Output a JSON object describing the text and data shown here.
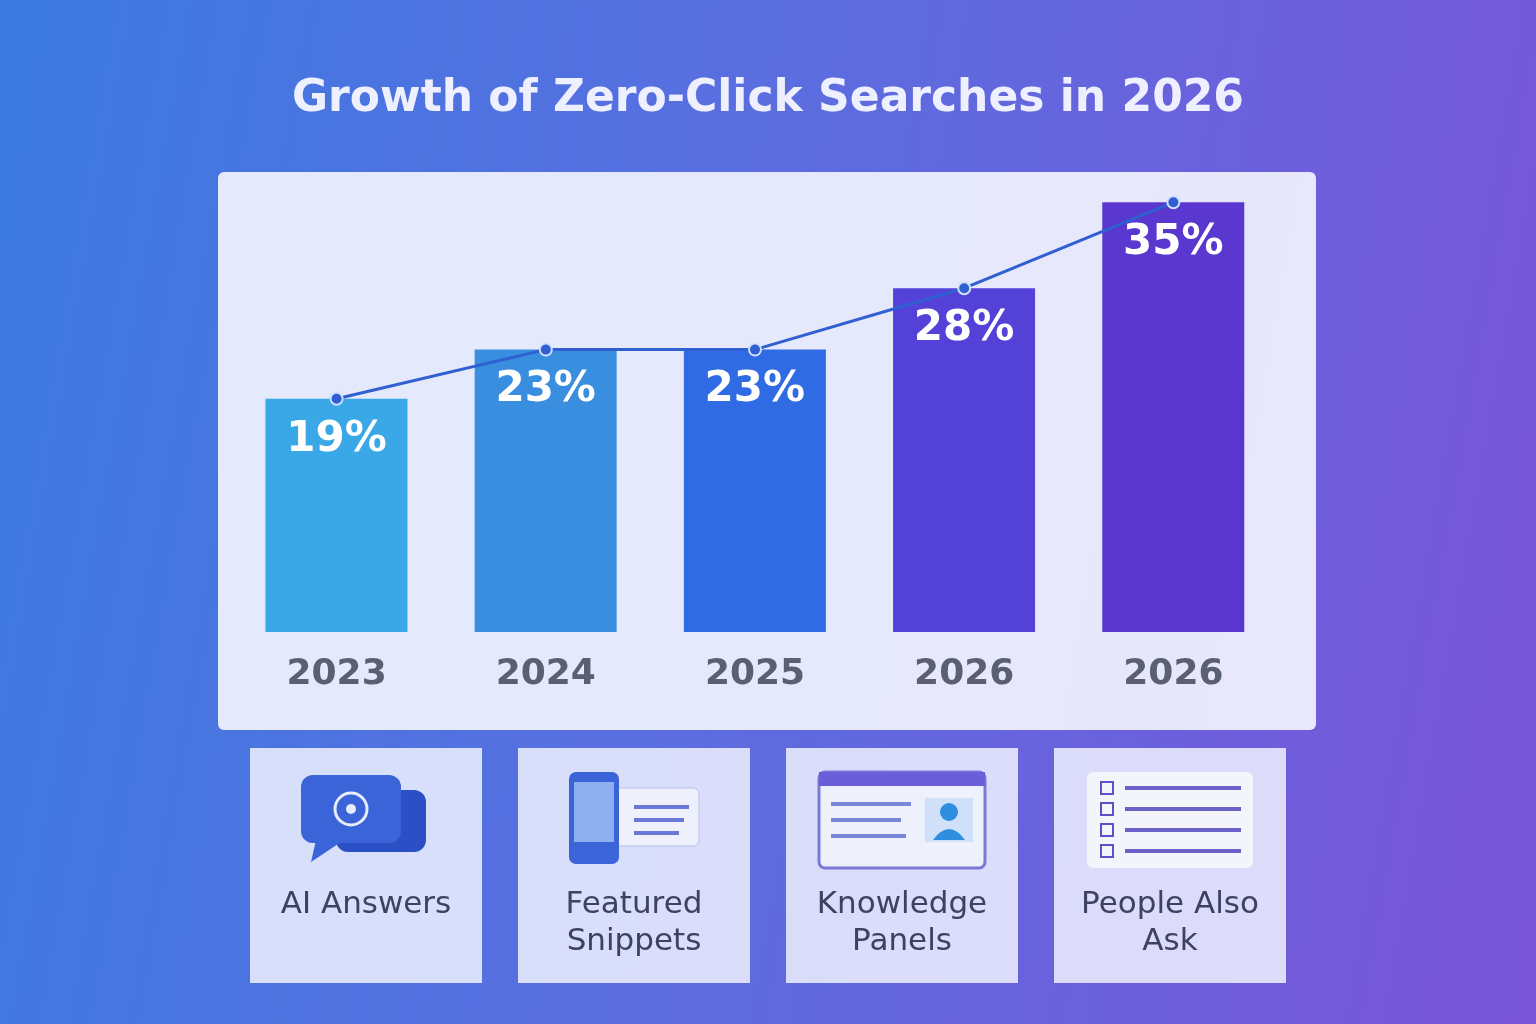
{
  "chart_data": {
    "type": "bar",
    "title": "Growth of Zero-Click Searches in 2026",
    "categories": [
      "2023",
      "2024",
      "2025",
      "2026",
      "2026"
    ],
    "series": [
      {
        "colors": [
          "#3aa8e6",
          "#3a8ee0",
          "#2f6be2",
          "#5442d8",
          "#5a38cf"
        ],
        "values": [
          19,
          23,
          23,
          28,
          35
        ],
        "value_labels": [
          "19%",
          "23%",
          "23%",
          "28%",
          "35%"
        ]
      },
      {
        "type": "line",
        "color": "#2f5fd0",
        "values": [
          19,
          23,
          23,
          28,
          35
        ]
      }
    ],
    "marker": "circle",
    "annotations": [
      "AI Answers",
      "Featured Snippets",
      "Knowledge Panels",
      "People Also Ask"
    ]
  }
}
